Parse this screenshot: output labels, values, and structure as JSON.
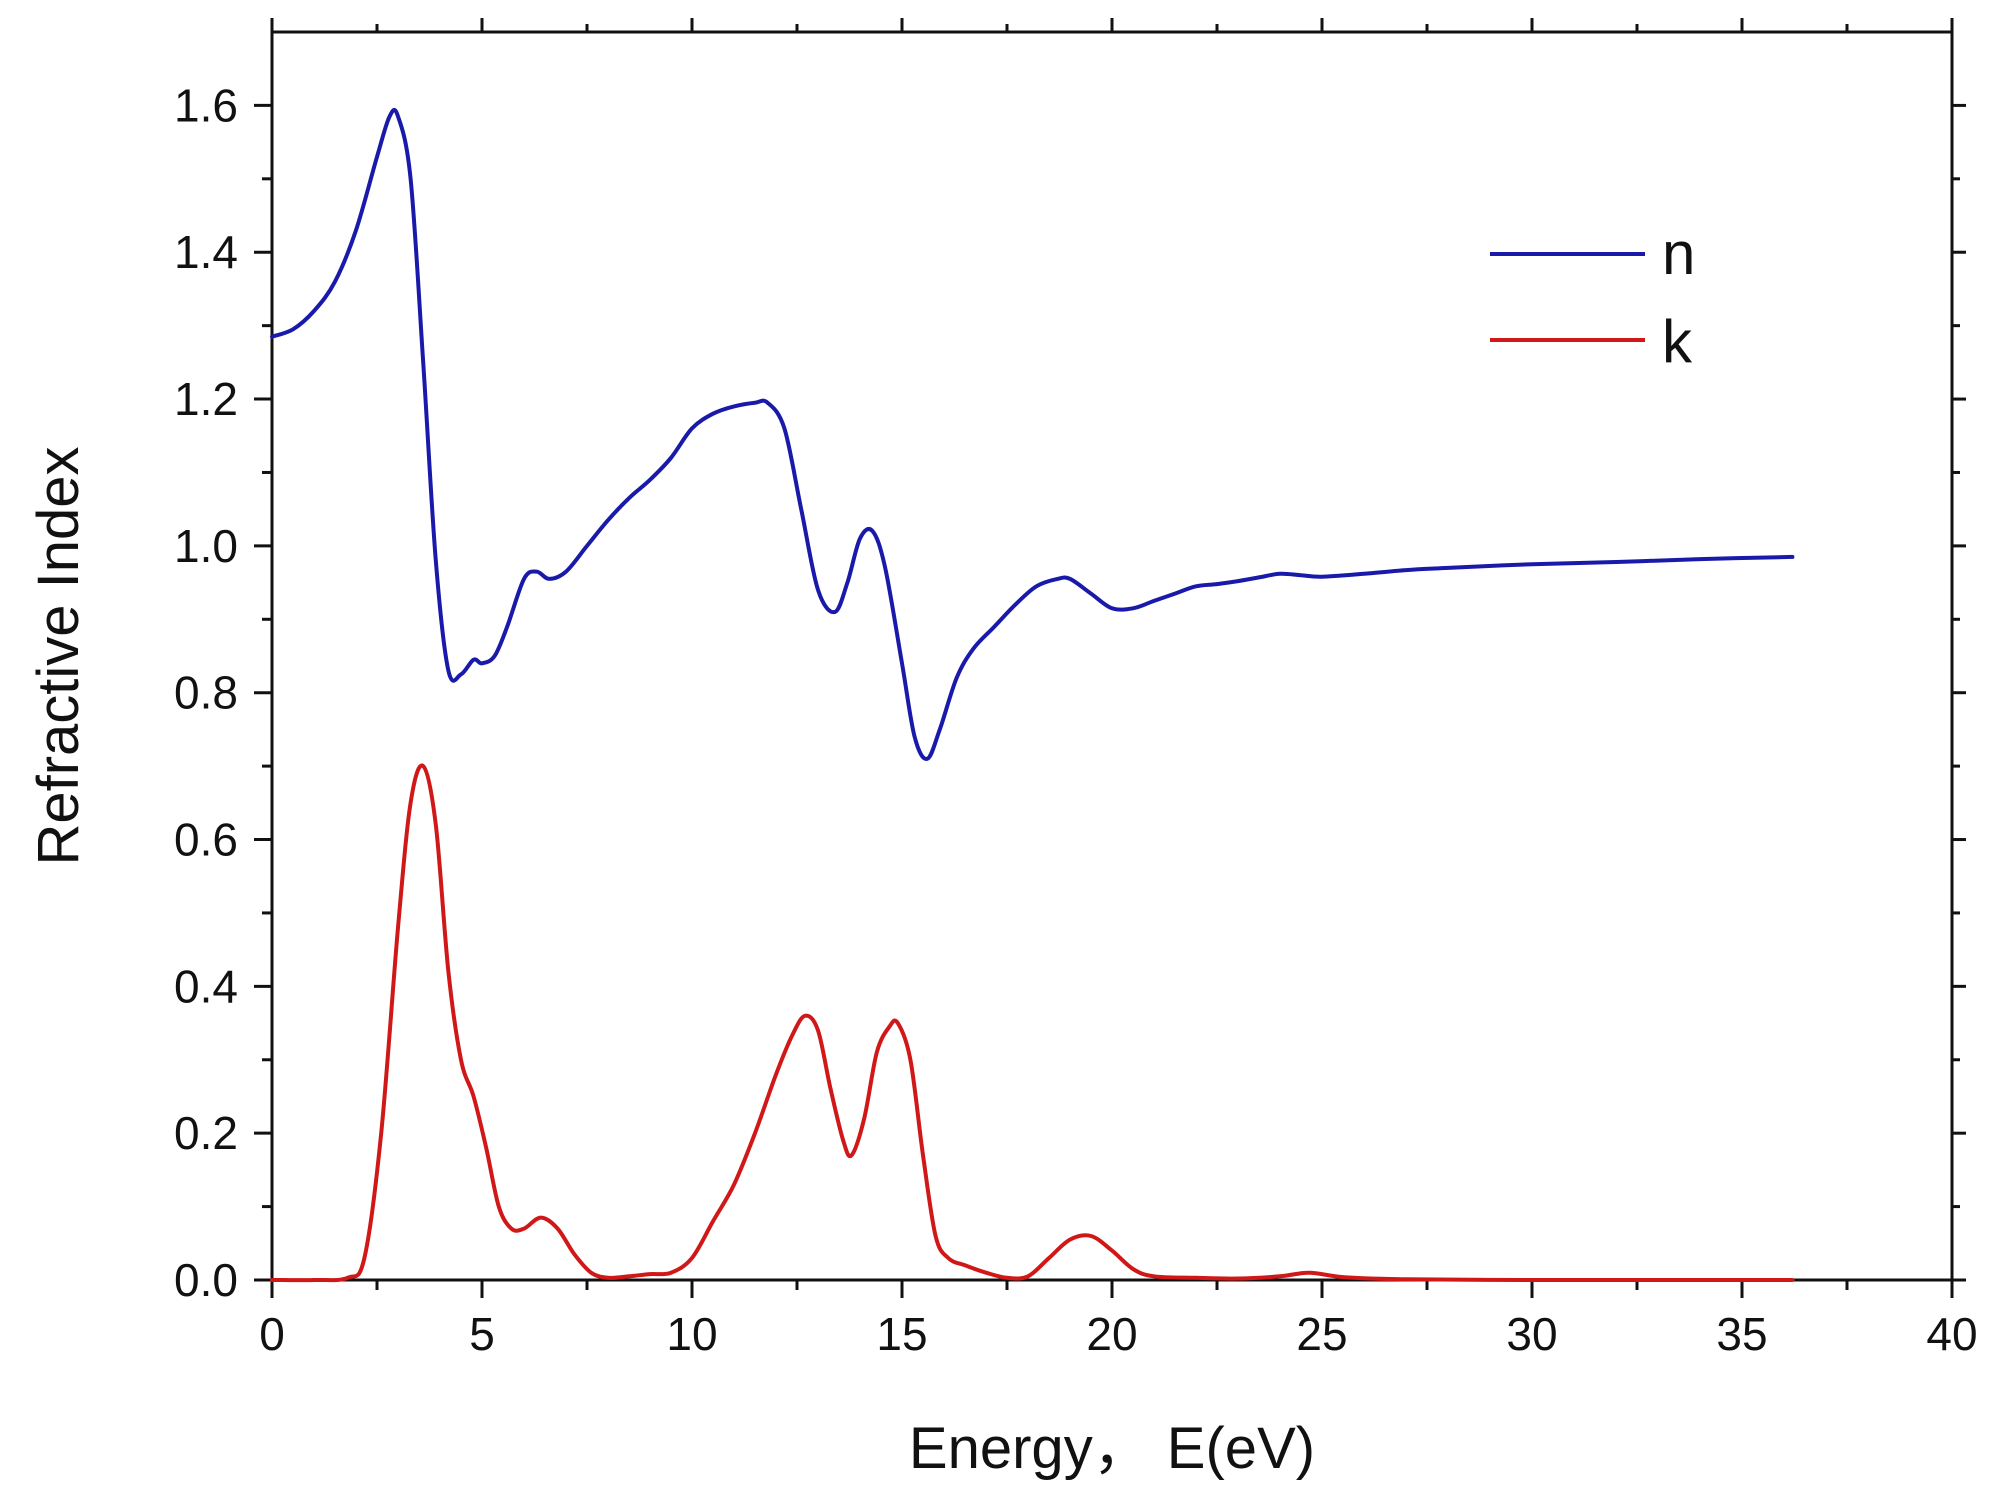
{
  "chart_data": {
    "type": "line",
    "title": "",
    "xlabel": "Energy， E(eV)",
    "ylabel": "Refractive Index",
    "xlim": [
      0,
      40
    ],
    "ylim": [
      0,
      1.7
    ],
    "xticks": [
      0,
      5,
      10,
      15,
      20,
      25,
      30,
      35,
      40
    ],
    "xtick_labels": [
      "0",
      "5",
      "10",
      "15",
      "20",
      "25",
      "30",
      "35",
      "40"
    ],
    "yticks": [
      0.0,
      0.2,
      0.4,
      0.6,
      0.8,
      1.0,
      1.2,
      1.4,
      1.6
    ],
    "ytick_labels": [
      "0.0",
      "0.2",
      "0.4",
      "0.6",
      "0.8",
      "1.0",
      "1.2",
      "1.4",
      "1.6"
    ],
    "grid": false,
    "legend_position": "top-right",
    "series": [
      {
        "name": "n",
        "color": "#1a1aaa",
        "x": [
          0,
          0.5,
          1.0,
          1.5,
          2.0,
          2.5,
          2.8,
          3.0,
          3.3,
          3.6,
          3.9,
          4.2,
          4.5,
          4.8,
          5.0,
          5.3,
          5.6,
          6.0,
          6.3,
          6.6,
          7.0,
          7.5,
          8.0,
          8.5,
          9.0,
          9.5,
          10.0,
          10.5,
          11.0,
          11.5,
          11.8,
          12.2,
          12.6,
          13.0,
          13.4,
          13.7,
          14.0,
          14.3,
          14.6,
          15.0,
          15.3,
          15.6,
          15.9,
          16.3,
          16.7,
          17.2,
          17.7,
          18.2,
          18.7,
          19.0,
          19.5,
          20.0,
          20.5,
          21.0,
          21.5,
          22.0,
          22.5,
          23.0,
          23.5,
          24.0,
          24.5,
          25.0,
          26.0,
          27.0,
          28.0,
          30.0,
          32.0,
          34.0,
          36.2
        ],
        "y": [
          1.285,
          1.295,
          1.32,
          1.36,
          1.43,
          1.53,
          1.585,
          1.585,
          1.5,
          1.25,
          0.98,
          0.83,
          0.825,
          0.845,
          0.84,
          0.85,
          0.89,
          0.955,
          0.965,
          0.955,
          0.965,
          1.0,
          1.035,
          1.065,
          1.09,
          1.12,
          1.16,
          1.18,
          1.19,
          1.195,
          1.195,
          1.16,
          1.05,
          0.94,
          0.91,
          0.95,
          1.01,
          1.02,
          0.97,
          0.84,
          0.74,
          0.71,
          0.75,
          0.82,
          0.86,
          0.89,
          0.92,
          0.945,
          0.955,
          0.955,
          0.935,
          0.915,
          0.915,
          0.925,
          0.935,
          0.945,
          0.948,
          0.952,
          0.957,
          0.962,
          0.96,
          0.958,
          0.962,
          0.967,
          0.97,
          0.975,
          0.978,
          0.982,
          0.985
        ]
      },
      {
        "name": "k",
        "color": "#d01818",
        "x": [
          0,
          1.0,
          1.8,
          2.2,
          2.6,
          3.0,
          3.3,
          3.6,
          3.9,
          4.2,
          4.5,
          4.8,
          5.1,
          5.4,
          5.7,
          6.0,
          6.4,
          6.8,
          7.2,
          7.6,
          8.0,
          8.5,
          9.0,
          9.5,
          10.0,
          10.5,
          11.0,
          11.5,
          12.0,
          12.4,
          12.7,
          13.0,
          13.3,
          13.6,
          13.8,
          14.1,
          14.4,
          14.7,
          14.9,
          15.2,
          15.5,
          15.8,
          16.1,
          16.5,
          17.0,
          17.5,
          18.0,
          18.5,
          19.0,
          19.5,
          20.0,
          20.5,
          21.0,
          22.0,
          23.0,
          24.0,
          24.7,
          25.5,
          27.0,
          30.0,
          33.0,
          36.2
        ],
        "y": [
          0,
          0,
          0.003,
          0.03,
          0.2,
          0.48,
          0.65,
          0.7,
          0.62,
          0.42,
          0.3,
          0.25,
          0.18,
          0.1,
          0.07,
          0.07,
          0.085,
          0.07,
          0.035,
          0.01,
          0.003,
          0.005,
          0.008,
          0.01,
          0.03,
          0.08,
          0.13,
          0.2,
          0.28,
          0.335,
          0.36,
          0.34,
          0.26,
          0.19,
          0.17,
          0.22,
          0.31,
          0.345,
          0.35,
          0.3,
          0.17,
          0.06,
          0.03,
          0.02,
          0.01,
          0.003,
          0.005,
          0.03,
          0.055,
          0.06,
          0.04,
          0.015,
          0.005,
          0.003,
          0.002,
          0.005,
          0.01,
          0.004,
          0.001,
          0,
          0,
          0
        ]
      }
    ]
  }
}
